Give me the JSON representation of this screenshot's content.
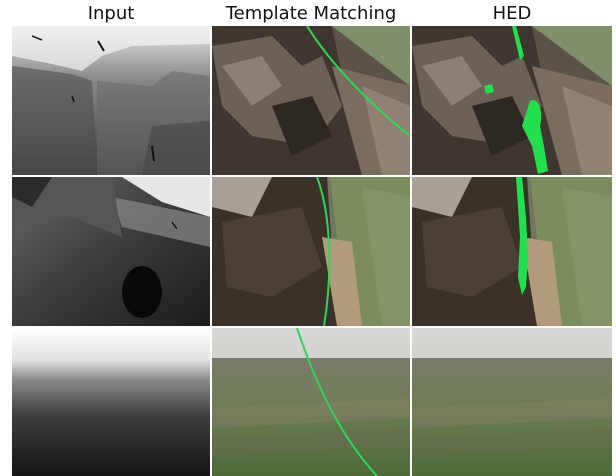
{
  "columns": [
    {
      "title": "Input"
    },
    {
      "title": "Template Matching"
    },
    {
      "title": "HED"
    }
  ],
  "colors": {
    "background": "#ffffff",
    "overlay_green": "#2fd65a",
    "hed_green": "#22e04d",
    "depth_near": "#151515",
    "depth_far": "#f2f2f2"
  },
  "rows": [
    {
      "scene": "close-up-trench-soil",
      "has_template_line": true,
      "has_hed_detection": true
    },
    {
      "scene": "trench-wall-with-vegetation",
      "has_template_line": true,
      "has_hed_detection": true
    },
    {
      "scene": "open-field-horizon",
      "has_template_line": true,
      "has_hed_detection": false
    }
  ]
}
